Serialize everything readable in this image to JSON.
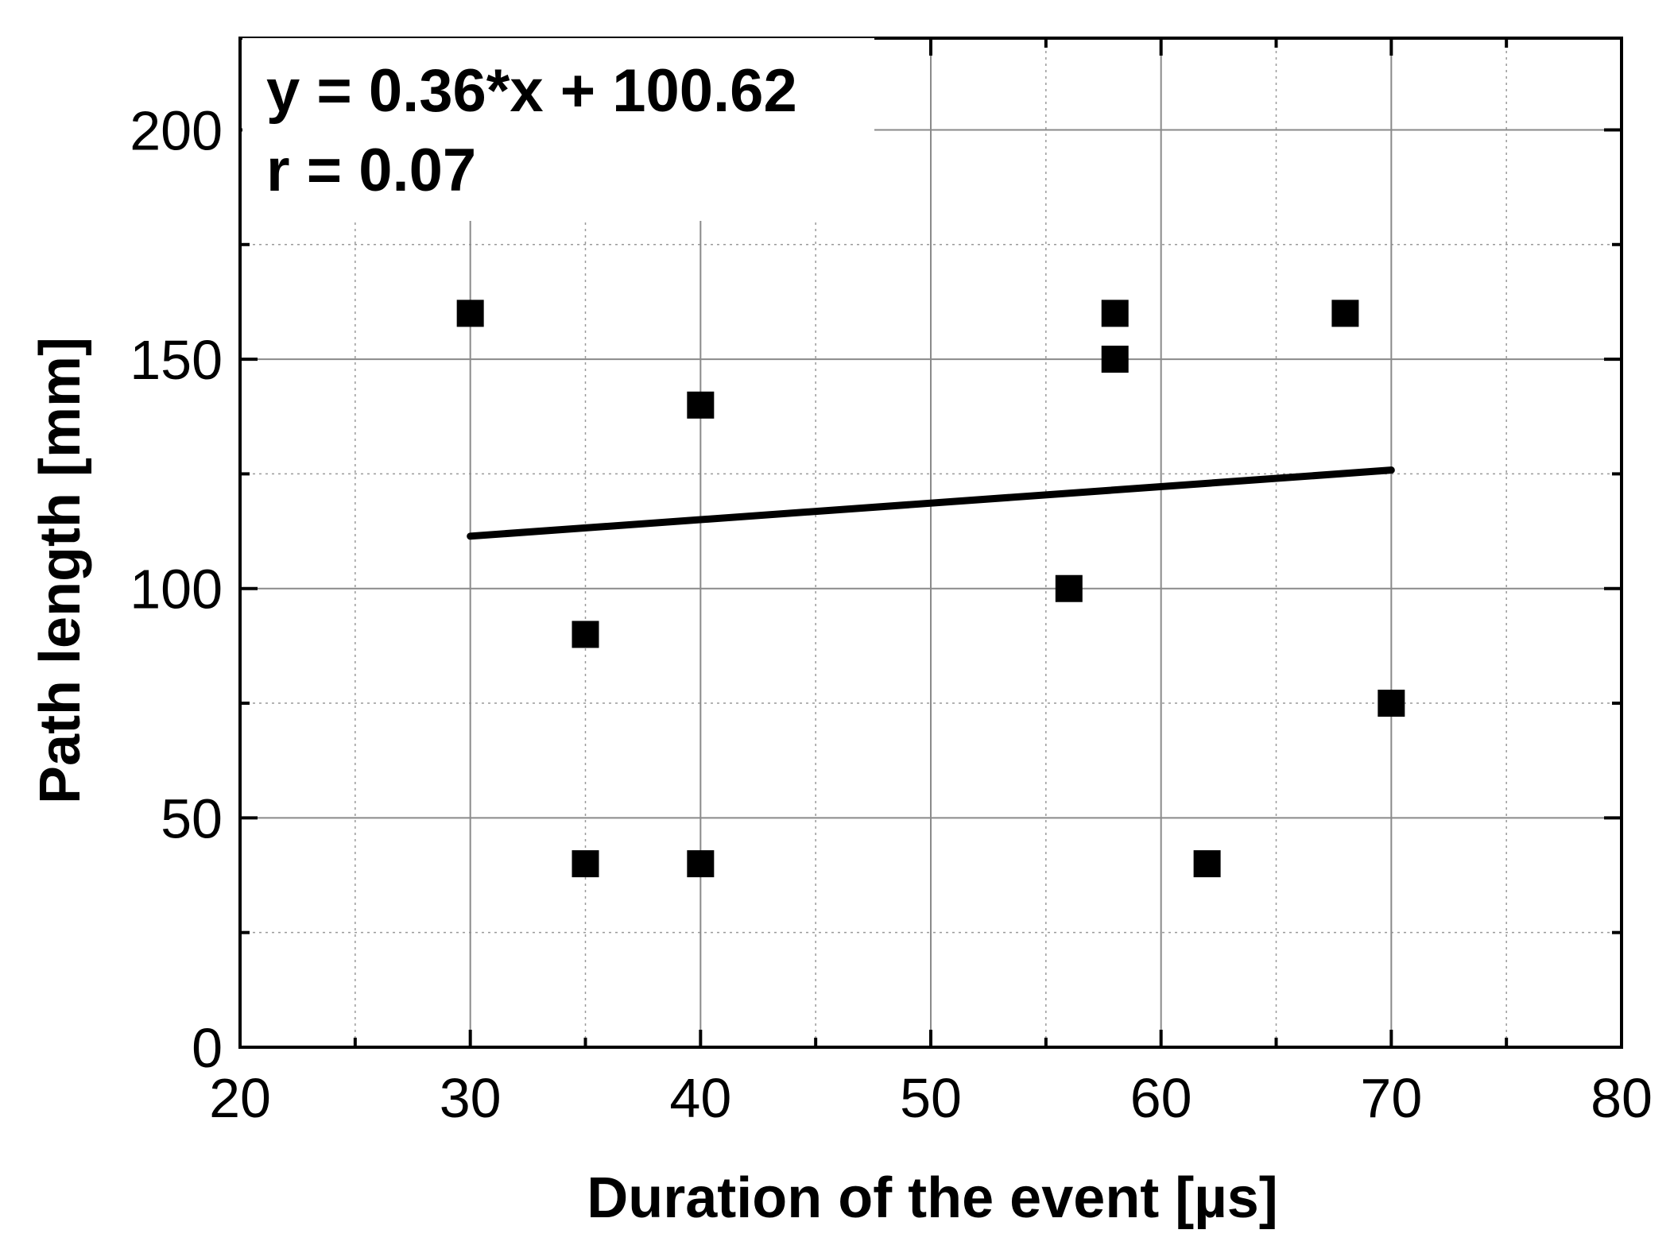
{
  "chart_data": {
    "type": "scatter",
    "title": "",
    "xlabel": "Duration of the event [µs]",
    "ylabel": "Path length [mm]",
    "xlim": [
      20,
      80
    ],
    "ylim": [
      0,
      220
    ],
    "x_ticks": [
      20,
      30,
      40,
      50,
      60,
      70,
      80
    ],
    "y_ticks": [
      0,
      50,
      100,
      150,
      200
    ],
    "x_minor_step": 5,
    "y_minor_step": 25,
    "grid": true,
    "series": [
      {
        "points": [
          {
            "x": 30,
            "y": 160
          },
          {
            "x": 35,
            "y": 90
          },
          {
            "x": 35,
            "y": 40
          },
          {
            "x": 40,
            "y": 140
          },
          {
            "x": 40,
            "y": 40
          },
          {
            "x": 56,
            "y": 100
          },
          {
            "x": 58,
            "y": 160
          },
          {
            "x": 58,
            "y": 150
          },
          {
            "x": 62,
            "y": 40
          },
          {
            "x": 68,
            "y": 160
          },
          {
            "x": 70,
            "y": 75
          }
        ],
        "marker": "square",
        "color": "#000000"
      }
    ],
    "fit": {
      "slope": 0.36,
      "intercept": 100.62,
      "x_range": [
        30,
        70
      ],
      "equation": "y = 0.36*x + 100.62",
      "r_text": "r = 0.07"
    }
  }
}
